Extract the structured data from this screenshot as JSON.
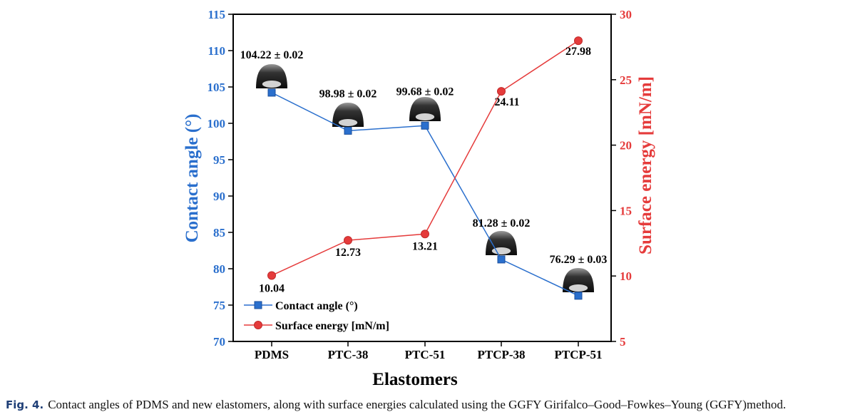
{
  "chart_data": {
    "type": "line",
    "xlabel": "Elastomers",
    "categories": [
      "PDMS",
      "PTC-38",
      "PTC-51",
      "PTCP-38",
      "PTCP-51"
    ],
    "y_left": {
      "label": "Contact angle (°)",
      "lim": [
        70,
        115
      ],
      "ticks": [
        "70",
        "75",
        "80",
        "85",
        "90",
        "95",
        "100",
        "105",
        "110",
        "115"
      ]
    },
    "y_right": {
      "label": "Surface energy [mN/m]",
      "lim": [
        5,
        30
      ],
      "ticks": [
        "5",
        "10",
        "15",
        "20",
        "25",
        "30"
      ]
    },
    "series": [
      {
        "name": "Contact angle (°)",
        "axis": "left",
        "marker": "square",
        "color": "#2a6fcd",
        "values": [
          104.22,
          98.98,
          99.68,
          81.28,
          76.29
        ],
        "labels": [
          "104.22 ± 0.02",
          "98.98 ± 0.02",
          "99.68 ± 0.02",
          "81.28 ± 0.02",
          "76.29 ± 0.03"
        ]
      },
      {
        "name": "Surface energy [mN/m]",
        "axis": "right",
        "marker": "circle",
        "color": "#e53b3b",
        "values": [
          10.04,
          12.73,
          13.21,
          24.11,
          27.98
        ],
        "labels": [
          "10.04",
          "12.73",
          "13.21",
          "24.11",
          "27.98"
        ]
      }
    ],
    "legend": {
      "placement": "bottom-left"
    },
    "grid": false,
    "droplet_images": true
  },
  "caption": {
    "figure_label": "Fig. 4.",
    "text": "Contact angles of PDMS and new elastomers, along with surface energies calculated using the GGFY Girifalco–Good–Fowkes–Young (GGFY)method."
  },
  "colors": {
    "left_axis": "#2a6fcd",
    "right_axis": "#e53b3b"
  }
}
